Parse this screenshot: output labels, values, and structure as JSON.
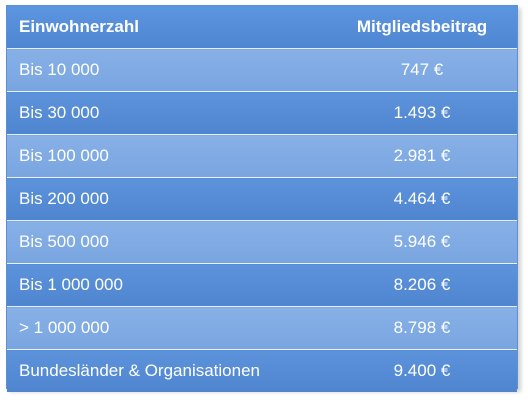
{
  "table": {
    "headers": [
      "Einwohnerzahl",
      "Mitgliedsbeitrag"
    ],
    "rows": [
      {
        "label": "Bis 10 000",
        "value": "747 €"
      },
      {
        "label": "Bis 30 000",
        "value": "1.493 €"
      },
      {
        "label": "Bis 100 000",
        "value": "2.981 €"
      },
      {
        "label": "Bis 200 000",
        "value": "4.464 €"
      },
      {
        "label": "Bis 500 000",
        "value": "5.946 €"
      },
      {
        "label": "Bis 1 000 000",
        "value": "8.206 €"
      },
      {
        "label": "> 1 000 000",
        "value": "8.798 €"
      },
      {
        "label": "Bundesländer & Organisationen",
        "value": "9.400 €"
      }
    ]
  },
  "colors": {
    "header_bg": "#4f86d2",
    "row_light": "#7fa9e3",
    "row_dark": "#5589d3",
    "text": "#ffffff"
  }
}
